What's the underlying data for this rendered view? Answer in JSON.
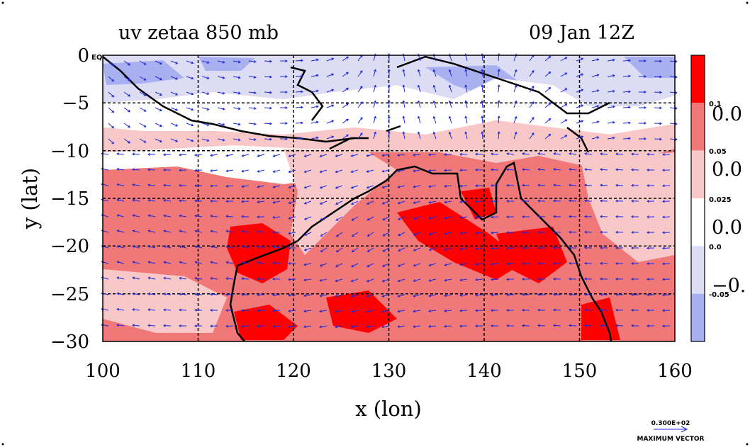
{
  "chart_data": {
    "type": "heatmap",
    "title_left": "uv zetaa 850 mb",
    "title_right": "09 Jan 12Z",
    "xlabel": "x (lon)",
    "ylabel": "y (lat)",
    "xlim": [
      100,
      160
    ],
    "ylim": [
      -30,
      0
    ],
    "x_ticks": [
      "100",
      "110",
      "120",
      "130",
      "140",
      "150",
      "160"
    ],
    "y_ticks": [
      "0",
      "−5",
      "−10",
      "−15",
      "−20",
      "−25",
      "−30"
    ],
    "y_zero_suffix": "EQ",
    "grid": true,
    "colorbar": {
      "levels": [
        {
          "label": "0.1",
          "big": "",
          "color": "#ff0000"
        },
        {
          "label": "0.05",
          "big": "0.0",
          "color": "#f07878"
        },
        {
          "label": "0.025",
          "big": "0.0",
          "color": "#f8c8c8"
        },
        {
          "label": "0.0",
          "big": "0.0",
          "color": "#ffffff"
        },
        {
          "label": "-0.05",
          "big": "−0.",
          "color": "#dcdcf4"
        },
        {
          "label": "",
          "big": "",
          "color": "#a8b0f0"
        }
      ]
    },
    "vector_key": {
      "magnitude": "0.300E+02",
      "label": "MAXIMUM VECTOR"
    }
  }
}
